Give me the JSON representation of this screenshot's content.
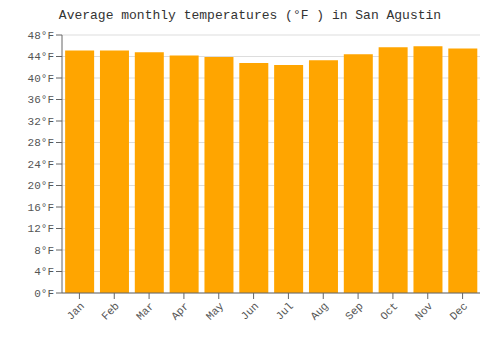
{
  "chart_data": {
    "type": "bar",
    "title": "Average monthly temperatures (°F ) in San Agustin",
    "categories": [
      "Jan",
      "Feb",
      "Mar",
      "Apr",
      "May",
      "Jun",
      "Jul",
      "Aug",
      "Sep",
      "Oct",
      "Nov",
      "Dec"
    ],
    "values": [
      45.1,
      45.1,
      44.8,
      44.2,
      43.9,
      42.8,
      42.4,
      43.3,
      44.4,
      45.7,
      45.9,
      45.5
    ],
    "color": "#FFA500",
    "ylim": [
      0,
      48
    ],
    "yticks": [
      {
        "value": 0,
        "label": "0°F"
      },
      {
        "value": 4,
        "label": "4°F"
      },
      {
        "value": 8,
        "label": "8°F"
      },
      {
        "value": 12,
        "label": "12°F"
      },
      {
        "value": 16,
        "label": "16°F"
      },
      {
        "value": 20,
        "label": "20°F"
      },
      {
        "value": 24,
        "label": "24°F"
      },
      {
        "value": 28,
        "label": "28°F"
      },
      {
        "value": 32,
        "label": "32°F"
      },
      {
        "value": 36,
        "label": "36°F"
      },
      {
        "value": 40,
        "label": "40°F"
      },
      {
        "value": 44,
        "label": "44°F"
      },
      {
        "value": 48,
        "label": "48°F"
      }
    ],
    "grid": true
  }
}
